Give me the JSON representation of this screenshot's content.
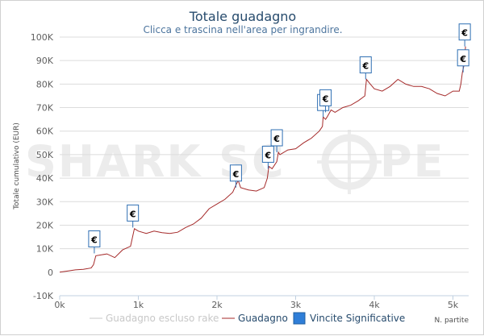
{
  "title": "Totale guadagno",
  "subtitle": "Clicca e trascina nell'area per ingrandire.",
  "watermark": {
    "left": "SHARK SC",
    "right": "PE"
  },
  "colors": {
    "series_guadagno": "#a52a2a",
    "series_escluso_rake": "#c8c8c8",
    "flag_fill": "#ffffff",
    "flag_border": "#2f6fb3",
    "legend_vincite": "#2f7ed8",
    "grid": "#dcdcdc",
    "title": "#274b6d"
  },
  "legend": [
    {
      "label": "Guadagno escluso rake",
      "color": "#c8c8c8",
      "symbol": "line",
      "state": "hidden"
    },
    {
      "label": "Guadagno",
      "color": "#a52a2a",
      "symbol": "line",
      "state": "visible"
    },
    {
      "label": "Vincite Significative",
      "color": "#2f7ed8",
      "symbol": "flag",
      "state": "visible"
    }
  ],
  "chart_data": {
    "type": "line",
    "title": "Totale guadagno",
    "subtitle": "Clicca e trascina nell'area per ingrandire.",
    "xlabel": "N. partite",
    "ylabel": "Totale cumulativo (EUR)",
    "xlim": [
      0,
      5200
    ],
    "ylim": [
      -10000,
      100000
    ],
    "x_ticks": [
      0,
      1000,
      2000,
      3000,
      4000,
      5000
    ],
    "x_tick_labels": [
      "0k",
      "1k",
      "2k",
      "3k",
      "4k",
      "5k"
    ],
    "y_ticks": [
      -10000,
      0,
      10000,
      20000,
      30000,
      40000,
      50000,
      60000,
      70000,
      80000,
      90000,
      100000
    ],
    "y_tick_labels": [
      "-10K",
      "0",
      "10K",
      "20K",
      "30K",
      "40K",
      "50K",
      "60K",
      "70K",
      "80K",
      "90K",
      "100K"
    ],
    "grid": "horizontal",
    "legend_position": "bottom",
    "series": [
      {
        "name": "Guadagno",
        "x": [
          0,
          100,
          200,
          300,
          400,
          430,
          460,
          500,
          600,
          700,
          800,
          900,
          920,
          950,
          1000,
          1100,
          1200,
          1300,
          1400,
          1500,
          1600,
          1700,
          1800,
          1900,
          2000,
          2100,
          2200,
          2240,
          2270,
          2300,
          2400,
          2500,
          2600,
          2640,
          2660,
          2700,
          2760,
          2780,
          2800,
          2900,
          3000,
          3100,
          3200,
          3300,
          3340,
          3350,
          3380,
          3400,
          3450,
          3500,
          3600,
          3700,
          3800,
          3880,
          3900,
          3950,
          4000,
          4100,
          4200,
          4300,
          4400,
          4500,
          4600,
          4700,
          4800,
          4900,
          5000,
          5080,
          5100,
          5120,
          5140,
          5160
        ],
        "y": [
          0,
          500,
          1000,
          1200,
          1800,
          3200,
          7000,
          7200,
          7800,
          6200,
          9500,
          11000,
          14000,
          18500,
          17500,
          16500,
          17500,
          16800,
          16500,
          17000,
          19000,
          20500,
          23000,
          27000,
          29000,
          31000,
          34000,
          37000,
          39000,
          36000,
          35000,
          34500,
          36000,
          40000,
          45000,
          44000,
          47000,
          51000,
          50000,
          52000,
          52500,
          55000,
          57000,
          60000,
          62000,
          66000,
          65000,
          66000,
          69000,
          68000,
          70000,
          71000,
          73000,
          75000,
          82000,
          80000,
          78000,
          77000,
          79000,
          82000,
          80000,
          79000,
          79000,
          78000,
          76000,
          75000,
          77000,
          77000,
          80000,
          85000,
          88000,
          96000
        ]
      }
    ],
    "flags": [
      {
        "x": 440,
        "y": 8000,
        "label": "€"
      },
      {
        "x": 930,
        "y": 19000,
        "label": "€"
      },
      {
        "x": 2240,
        "y": 36000,
        "label": "€"
      },
      {
        "x": 2650,
        "y": 44000,
        "label": "€"
      },
      {
        "x": 2760,
        "y": 51000,
        "label": "€"
      },
      {
        "x": 3350,
        "y": 66000,
        "label": "€"
      },
      {
        "x": 3380,
        "y": 68000,
        "label": "€"
      },
      {
        "x": 3890,
        "y": 82000,
        "label": "€"
      },
      {
        "x": 5130,
        "y": 85000,
        "label": "€"
      },
      {
        "x": 5150,
        "y": 96000,
        "label": "€"
      }
    ]
  }
}
